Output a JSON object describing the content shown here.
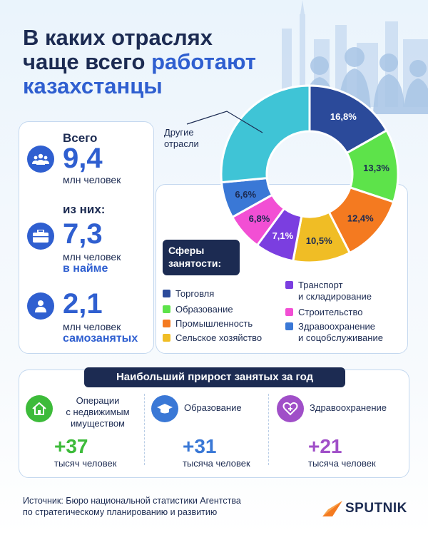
{
  "title": {
    "line1": "В каких отраслях",
    "line2_a": "чаще всего ",
    "line2_b": "работают",
    "line3": "казахстанцы"
  },
  "stats": {
    "total_label": "Всего",
    "total_value": "9,4",
    "total_unit": "млн человек",
    "of_them_label": "из них:",
    "employed_value": "7,3",
    "employed_unit": "млн человек",
    "employed_emph": "в найме",
    "self_value": "2,1",
    "self_unit": "млн человек",
    "self_emph": "самозанятых"
  },
  "chart_data": {
    "type": "pie",
    "title": "Сферы занятости:",
    "slices": [
      {
        "label": "Торговля",
        "value": 16.8,
        "display": "16,8%",
        "color": "#2b4a9a"
      },
      {
        "label": "Образование",
        "value": 13.3,
        "display": "13,3%",
        "color": "#5de34a"
      },
      {
        "label": "Промышленность",
        "value": 12.4,
        "display": "12,4%",
        "color": "#f47a20"
      },
      {
        "label": "Сельское хозяйство",
        "value": 10.5,
        "display": "10,5%",
        "color": "#f0bd25"
      },
      {
        "label": "Транспорт и складирование",
        "value": 7.1,
        "display": "7,1%",
        "color": "#7b3ee0"
      },
      {
        "label": "Строительство",
        "value": 6.8,
        "display": "6,8%",
        "color": "#f24fd4"
      },
      {
        "label": "Здравоохранение и соцобслуживание",
        "value": 6.6,
        "display": "6,6%",
        "color": "#3a78d6"
      },
      {
        "label": "Другие отрасли",
        "value": 26.5,
        "display": "",
        "color": "#3fc4d6"
      }
    ],
    "other_label_line1": "Другие",
    "other_label_line2": "отрасли",
    "legend": {
      "trade": "Торговля",
      "education": "Образование",
      "industry": "Промышленность",
      "agriculture": "Сельское хозяйство",
      "transport_1": "Транспорт",
      "transport_2": "и складирование",
      "construction": "Строительство",
      "health_1": "Здравоохранение",
      "health_2": "и соцобслуживание"
    }
  },
  "growth": {
    "title": "Наибольший прирост занятых за год",
    "items": [
      {
        "label1": "Операции",
        "label2": "с недвижимым",
        "label3": "имуществом",
        "value": "+37",
        "unit": "тысяч человек",
        "color": "#3dbb3a"
      },
      {
        "label1": "Образование",
        "value": "+31",
        "unit": "тысяча человек",
        "color": "#3a78d6"
      },
      {
        "label1": "Здравоохранение",
        "value": "+21",
        "unit": "тысяча человек",
        "color": "#a04fc8"
      }
    ]
  },
  "source": {
    "line1": "Источник: Бюро национальной статистики Агентства",
    "line2": "по стратегическому планированию и развитию"
  },
  "logo": "SPUTNIK"
}
